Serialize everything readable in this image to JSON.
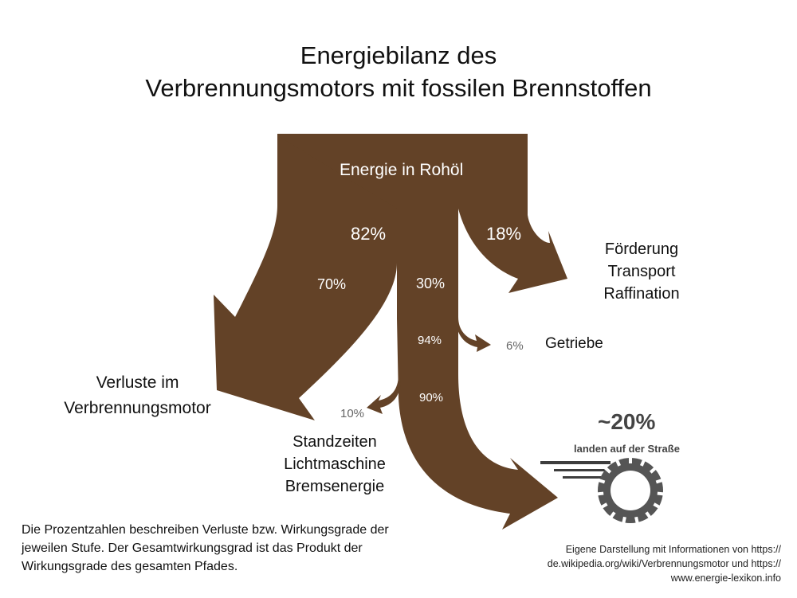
{
  "title": {
    "line1": "Energiebilanz des",
    "line2": "Verbrennungsmotors mit fossilen Brennstoffen"
  },
  "colors": {
    "flow": "#634227",
    "wheel": "#555555",
    "speed_lines": "#3d3d3d"
  },
  "icons": [
    "wheel-icon",
    "speed-lines-icon"
  ],
  "flows": {
    "source_label": "Energie in Rohöl",
    "main_branch_pct": "82%",
    "production_branch_pct": "18%",
    "engine_loss_pct": "70%",
    "engine_output_pct": "30%",
    "gearbox_efficiency_pct": "94%",
    "gearbox_loss_pct": "6%",
    "drive_efficiency_pct": "90%",
    "idle_loss_pct": "10%"
  },
  "destinations": {
    "production": [
      "Förderung",
      "Transport",
      "Raffination"
    ],
    "gearbox": "Getriebe",
    "engine_loss": [
      "Verluste im",
      "Verbrennungsmotor"
    ],
    "idle": [
      "Standzeiten",
      "Lichtmaschine",
      "Bremsenergie"
    ]
  },
  "result": {
    "value": "~20%",
    "caption": "landen auf der Straße"
  },
  "note": [
    "Die Prozentzahlen beschreiben Verluste bzw. Wirkungsgrade der",
    "jeweilen Stufe. Der Gesamtwirkungsgrad ist das Produkt der",
    "Wirkungsgrade des gesamten Pfades."
  ],
  "source": [
    "Eigene Darstellung mit Informationen von https://",
    "de.wikipedia.org/wiki/Verbrennungsmotor und https://",
    "www.energie-lexikon.info"
  ]
}
